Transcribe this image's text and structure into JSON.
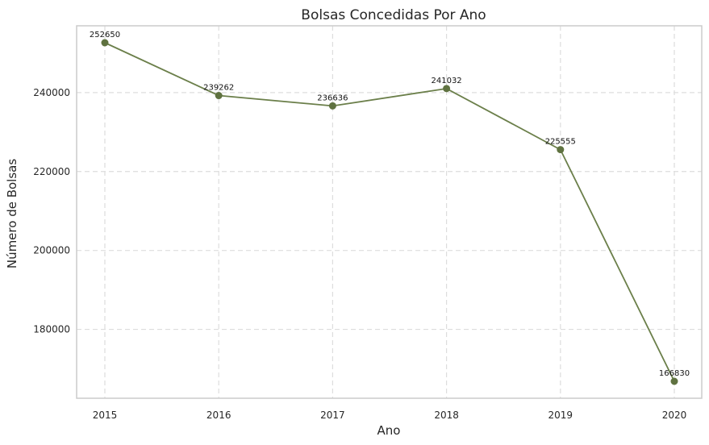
{
  "chart_data": {
    "type": "line",
    "title": "Bolsas Concedidas Por Ano",
    "xlabel": "Ano",
    "ylabel": "Número de Bolsas",
    "x": [
      "2015",
      "2016",
      "2017",
      "2018",
      "2019",
      "2020"
    ],
    "series": [
      {
        "values": [
          252650,
          239262,
          236636,
          241032,
          225555,
          166830
        ]
      }
    ],
    "data_labels": [
      "252650",
      "239262",
      "236636",
      "241032",
      "225555",
      "166830"
    ],
    "y_ticks": [
      180000,
      200000,
      220000,
      240000
    ],
    "y_tick_labels": [
      "180000",
      "200000",
      "220000",
      "240000"
    ],
    "ylim": [
      162540,
      256940
    ],
    "grid": true,
    "grid_style": "dashed",
    "line_color": "#6b7f4a",
    "marker_color": "#5f7240",
    "frame_color": "#cccccc",
    "grid_color": "#dddddd"
  }
}
